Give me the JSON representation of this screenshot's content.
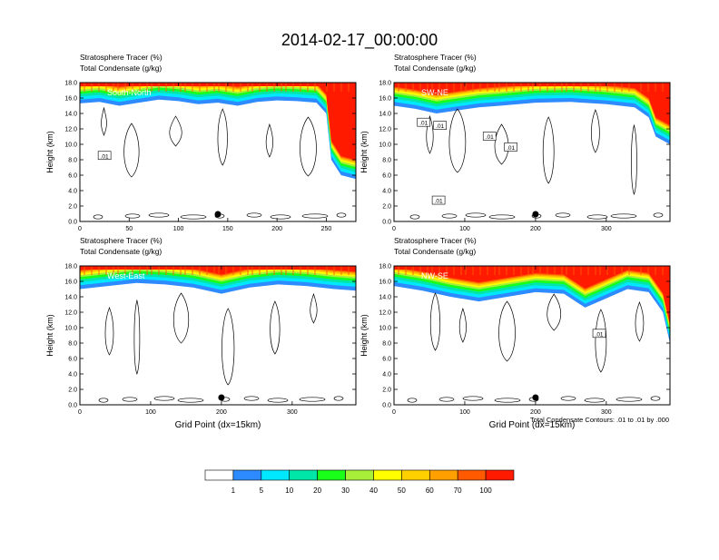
{
  "page": {
    "title": "2014-02-17_00:00:00"
  },
  "colors": {
    "levels": [
      "#ffffff",
      "#2e8bff",
      "#00e8ff",
      "#00e5a8",
      "#1aff1a",
      "#a8ef3a",
      "#ffff00",
      "#ffd000",
      "#ffa000",
      "#ff5a00",
      "#ff1a00"
    ],
    "contour": "#000000"
  },
  "colorbar": {
    "labels": [
      "1",
      "5",
      "10",
      "20",
      "30",
      "40",
      "50",
      "60",
      "70",
      "100"
    ]
  },
  "contour_note": "Total Condensate Contours: .01 to .01 by .000",
  "chart_data": [
    {
      "type": "heatmap",
      "id": "south-north",
      "cross_section": "South-North",
      "title_line1": "Stratosphere Tracer   (%)",
      "title_line2": "Total Condensate   (g/kg)",
      "ylabel": "Height (km)",
      "xlabel": "",
      "xlim": [
        0,
        280
      ],
      "ylim": [
        0,
        18
      ],
      "xticks": [
        "0",
        "50",
        "100",
        "150",
        "200",
        "250"
      ],
      "xtick_values": [
        0,
        50,
        100,
        150,
        200,
        250
      ],
      "yticks": [
        "0.0",
        "2.0",
        "4.0",
        "6.0",
        "8.0",
        "10.0",
        "12.0",
        "14.0",
        "16.0",
        "18.0"
      ],
      "tracer_boundary": [
        [
          0,
          15.3
        ],
        [
          20,
          15.5
        ],
        [
          40,
          15.0
        ],
        [
          60,
          15.4
        ],
        [
          80,
          15.8
        ],
        [
          100,
          15.6
        ],
        [
          120,
          15.2
        ],
        [
          140,
          15.4
        ],
        [
          160,
          15.0
        ],
        [
          180,
          15.5
        ],
        [
          200,
          15.7
        ],
        [
          220,
          15.6
        ],
        [
          240,
          15.4
        ],
        [
          250,
          14.0
        ],
        [
          255,
          8.0
        ],
        [
          265,
          6.0
        ],
        [
          280,
          5.5
        ]
      ],
      "contour_labels": [
        {
          "text": ".01",
          "x": 25,
          "y": 8.5
        }
      ],
      "marker_x": 140
    },
    {
      "type": "heatmap",
      "id": "sw-ne",
      "cross_section": "SW-NE",
      "title_line1": "Stratosphere Tracer   (%)",
      "title_line2": "Total Condensate   (g/kg)",
      "ylabel": "Height (km)",
      "xlabel": "",
      "xlim": [
        0,
        390
      ],
      "ylim": [
        0,
        18
      ],
      "xticks": [
        "0",
        "100",
        "200",
        "300"
      ],
      "xtick_values": [
        0,
        100,
        200,
        300
      ],
      "yticks": [
        "0.0",
        "2.0",
        "4.0",
        "6.0",
        "8.0",
        "10.0",
        "12.0",
        "14.0",
        "16.0",
        "18.0"
      ],
      "tracer_boundary": [
        [
          0,
          15.0
        ],
        [
          30,
          14.6
        ],
        [
          60,
          14.0
        ],
        [
          90,
          14.4
        ],
        [
          120,
          14.8
        ],
        [
          150,
          15.0
        ],
        [
          200,
          15.4
        ],
        [
          250,
          15.5
        ],
        [
          300,
          15.2
        ],
        [
          340,
          14.8
        ],
        [
          360,
          13.5
        ],
        [
          370,
          11.0
        ],
        [
          390,
          10.0
        ]
      ],
      "contour_labels": [
        {
          "text": ".01",
          "x": 42,
          "y": 12.8
        },
        {
          "text": ".01",
          "x": 65,
          "y": 12.4
        },
        {
          "text": ".01",
          "x": 135,
          "y": 11.0
        },
        {
          "text": ".01",
          "x": 165,
          "y": 9.6
        },
        {
          "text": ".01",
          "x": 63,
          "y": 2.7
        }
      ],
      "marker_x": 200
    },
    {
      "type": "heatmap",
      "id": "west-east",
      "cross_section": "West-East",
      "title_line1": "Stratosphere Tracer   (%)",
      "title_line2": "Total Condensate   (g/kg)",
      "ylabel": "Height (km)",
      "xlabel": "Grid Point (dx=15km)",
      "xlim": [
        0,
        390
      ],
      "ylim": [
        0,
        18
      ],
      "xticks": [
        "0",
        "100",
        "200",
        "300"
      ],
      "xtick_values": [
        0,
        100,
        200,
        300
      ],
      "yticks": [
        "0.0",
        "2.0",
        "4.0",
        "6.0",
        "8.0",
        "10.0",
        "12.0",
        "14.0",
        "16.0",
        "18.0"
      ],
      "tracer_boundary": [
        [
          0,
          15.0
        ],
        [
          40,
          15.4
        ],
        [
          80,
          15.8
        ],
        [
          120,
          15.6
        ],
        [
          160,
          15.2
        ],
        [
          200,
          14.4
        ],
        [
          240,
          15.2
        ],
        [
          280,
          15.6
        ],
        [
          320,
          15.4
        ],
        [
          360,
          15.0
        ],
        [
          390,
          14.8
        ]
      ],
      "contour_labels": [],
      "marker_x": 200
    },
    {
      "type": "heatmap",
      "id": "nw-se",
      "cross_section": "NW-SE",
      "title_line1": "Stratosphere Tracer   (%)",
      "title_line2": "Total Condensate   (g/kg)",
      "ylabel": "Height (km)",
      "xlabel": "Grid Point (dx=15km)",
      "xlim": [
        0,
        390
      ],
      "ylim": [
        0,
        18
      ],
      "xticks": [
        "0",
        "100",
        "200",
        "300"
      ],
      "xtick_values": [
        0,
        100,
        200,
        300
      ],
      "yticks": [
        "0.0",
        "2.0",
        "4.0",
        "6.0",
        "8.0",
        "10.0",
        "12.0",
        "14.0",
        "16.0",
        "18.0"
      ],
      "tracer_boundary": [
        [
          0,
          15.4
        ],
        [
          40,
          14.8
        ],
        [
          80,
          14.0
        ],
        [
          120,
          13.4
        ],
        [
          160,
          14.0
        ],
        [
          200,
          14.6
        ],
        [
          240,
          14.4
        ],
        [
          270,
          12.6
        ],
        [
          300,
          13.8
        ],
        [
          330,
          15.0
        ],
        [
          360,
          14.6
        ],
        [
          380,
          12.0
        ],
        [
          390,
          8.0
        ]
      ],
      "contour_labels": [
        {
          "text": ".01",
          "x": 290,
          "y": 9.2
        }
      ],
      "marker_x": 200
    }
  ]
}
